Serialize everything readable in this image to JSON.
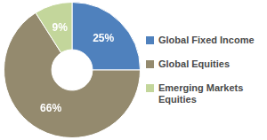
{
  "chart_data": {
    "type": "doughnut",
    "categories": [
      "Global Fixed Income",
      "Global Equities",
      "Emerging Markets Equities"
    ],
    "values": [
      25,
      66,
      9
    ],
    "value_labels": [
      "25%",
      "66%",
      "9%"
    ],
    "colors": [
      "#4f81bd",
      "#948a6e",
      "#c3d69b"
    ],
    "data_labels": true,
    "legend": "right"
  }
}
